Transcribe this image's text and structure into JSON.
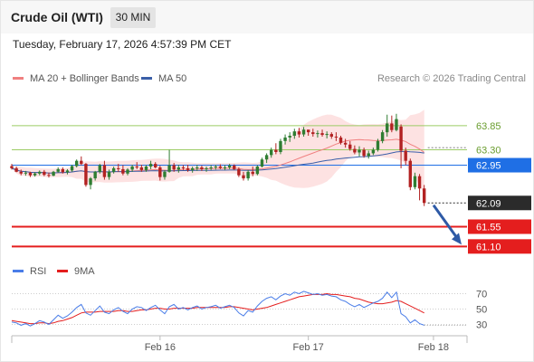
{
  "header": {
    "title": "Crude Oil (WTI)",
    "timeframe": "30 MIN",
    "datetime": "Tuesday, February 17, 2026 4:57:39 PM CET"
  },
  "legend": {
    "ma20_bb_label": "MA 20 + Bollinger Bands",
    "ma50_label": "MA 50",
    "copyright": "Research © 2026 Trading Central",
    "rsi_label": "RSI",
    "rsi_ma_label": "9MA"
  },
  "colors": {
    "bull": "#2f7d32",
    "bear": "#b22222",
    "ma20": "#f08080",
    "bollinger_fill": "#fde2e2",
    "ma50": "#3b5fa8",
    "green_levels": "#9ccc65",
    "support": "#e41e1e",
    "pivot": "#1f6fe5",
    "last_price": "#2b2b2b",
    "rsi": "#4a7de8",
    "rsi_ma": "#e41e1e",
    "arrow": "#2e5aa6"
  },
  "chart_data": [
    {
      "type": "candlestick",
      "title": "Crude Oil (WTI)",
      "interval": "30 MIN",
      "ylim": [
        60.88,
        64.63
      ],
      "x_ticks": [
        "Feb 16",
        "Feb 17",
        "Feb 18"
      ],
      "price_levels": [
        {
          "label": "63.85",
          "value": 63.85,
          "kind": "resistance"
        },
        {
          "label": "63.30",
          "value": 63.3,
          "kind": "resistance"
        },
        {
          "label": "62.95",
          "value": 62.95,
          "kind": "pivot"
        },
        {
          "label": "62.09",
          "value": 62.09,
          "kind": "last"
        },
        {
          "label": "61.55",
          "value": 61.55,
          "kind": "support"
        },
        {
          "label": "61.10",
          "value": 61.1,
          "kind": "support"
        }
      ],
      "forecast_arrow": {
        "from": 62.08,
        "to": 61.1
      },
      "candles": [
        [
          62.93,
          62.98,
          62.85,
          62.88
        ],
        [
          62.88,
          62.92,
          62.79,
          62.8
        ],
        [
          62.8,
          62.85,
          62.72,
          62.76
        ],
        [
          62.76,
          62.82,
          62.71,
          62.78
        ],
        [
          62.78,
          62.8,
          62.68,
          62.72
        ],
        [
          62.72,
          62.79,
          62.69,
          62.76
        ],
        [
          62.76,
          62.83,
          62.72,
          62.8
        ],
        [
          62.8,
          62.84,
          62.7,
          62.73
        ],
        [
          62.73,
          62.78,
          62.67,
          62.71
        ],
        [
          62.71,
          62.82,
          62.7,
          62.8
        ],
        [
          62.8,
          62.9,
          62.78,
          62.86
        ],
        [
          62.86,
          62.9,
          62.76,
          62.79
        ],
        [
          62.79,
          62.86,
          62.74,
          62.83
        ],
        [
          62.83,
          62.96,
          62.8,
          62.93
        ],
        [
          62.93,
          63.08,
          62.9,
          63.05
        ],
        [
          63.05,
          63.15,
          62.95,
          62.98
        ],
        [
          62.98,
          63.0,
          62.46,
          62.5
        ],
        [
          62.5,
          62.68,
          62.4,
          62.65
        ],
        [
          62.65,
          62.82,
          62.6,
          62.8
        ],
        [
          62.8,
          62.98,
          62.76,
          62.95
        ],
        [
          62.95,
          63.05,
          62.62,
          62.68
        ],
        [
          62.68,
          62.85,
          62.62,
          62.8
        ],
        [
          62.8,
          62.92,
          62.76,
          62.88
        ],
        [
          62.88,
          62.98,
          62.8,
          62.86
        ],
        [
          62.86,
          62.95,
          62.72,
          62.76
        ],
        [
          62.76,
          62.88,
          62.72,
          62.85
        ],
        [
          62.85,
          62.96,
          62.8,
          62.92
        ],
        [
          62.92,
          63.02,
          62.86,
          62.9
        ],
        [
          62.9,
          62.96,
          62.8,
          62.84
        ],
        [
          62.84,
          62.95,
          62.8,
          62.92
        ],
        [
          62.92,
          63.05,
          62.86,
          62.98
        ],
        [
          62.98,
          63.02,
          62.88,
          62.9
        ],
        [
          62.9,
          62.94,
          62.6,
          62.68
        ],
        [
          62.68,
          62.84,
          62.62,
          62.8
        ],
        [
          62.8,
          63.3,
          62.78,
          62.95
        ],
        [
          62.95,
          63.0,
          62.8,
          62.85
        ],
        [
          62.85,
          62.96,
          62.78,
          62.9
        ],
        [
          62.9,
          62.95,
          62.84,
          62.88
        ],
        [
          62.88,
          62.96,
          62.8,
          62.84
        ],
        [
          62.84,
          62.92,
          62.78,
          62.88
        ],
        [
          62.88,
          62.96,
          62.82,
          62.9
        ],
        [
          62.9,
          62.94,
          62.82,
          62.86
        ],
        [
          62.86,
          62.92,
          62.8,
          62.88
        ],
        [
          62.88,
          62.95,
          62.84,
          62.9
        ],
        [
          62.9,
          62.96,
          62.85,
          62.92
        ],
        [
          62.92,
          62.97,
          62.86,
          62.89
        ],
        [
          62.89,
          62.95,
          62.84,
          62.9
        ],
        [
          62.9,
          62.98,
          62.86,
          62.94
        ],
        [
          62.94,
          62.97,
          62.84,
          62.86
        ],
        [
          62.86,
          62.9,
          62.68,
          62.72
        ],
        [
          62.72,
          62.8,
          62.6,
          62.65
        ],
        [
          62.65,
          62.84,
          62.6,
          62.8
        ],
        [
          62.8,
          62.92,
          62.7,
          62.75
        ],
        [
          62.75,
          62.95,
          62.72,
          62.92
        ],
        [
          62.92,
          63.12,
          62.9,
          63.08
        ],
        [
          63.08,
          63.22,
          63.0,
          63.18
        ],
        [
          63.18,
          63.35,
          63.12,
          63.3
        ],
        [
          63.3,
          63.45,
          63.2,
          63.25
        ],
        [
          63.25,
          63.55,
          63.2,
          63.5
        ],
        [
          63.5,
          63.65,
          63.42,
          63.58
        ],
        [
          63.58,
          63.7,
          63.48,
          63.62
        ],
        [
          63.62,
          63.78,
          63.55,
          63.72
        ],
        [
          63.72,
          63.8,
          63.58,
          63.65
        ],
        [
          63.65,
          63.82,
          63.6,
          63.76
        ],
        [
          63.76,
          63.75,
          63.62,
          63.7
        ],
        [
          63.7,
          63.78,
          63.6,
          63.66
        ],
        [
          63.66,
          63.74,
          63.58,
          63.68
        ],
        [
          63.68,
          63.76,
          63.6,
          63.64
        ],
        [
          63.64,
          63.72,
          63.56,
          63.66
        ],
        [
          63.66,
          63.7,
          63.55,
          63.6
        ],
        [
          63.6,
          63.7,
          63.5,
          63.58
        ],
        [
          63.58,
          63.62,
          63.42,
          63.46
        ],
        [
          63.46,
          63.55,
          63.35,
          63.42
        ],
        [
          63.42,
          63.5,
          63.28,
          63.32
        ],
        [
          63.32,
          63.4,
          63.2,
          63.24
        ],
        [
          63.24,
          63.38,
          63.15,
          63.3
        ],
        [
          63.3,
          63.35,
          63.12,
          63.16
        ],
        [
          63.16,
          63.28,
          63.1,
          63.22
        ],
        [
          63.22,
          63.35,
          63.18,
          63.3
        ],
        [
          63.3,
          63.55,
          63.26,
          63.5
        ],
        [
          63.5,
          63.75,
          63.45,
          63.7
        ],
        [
          63.7,
          64.1,
          63.6,
          63.9
        ],
        [
          63.9,
          64.08,
          63.7,
          63.75
        ],
        [
          63.75,
          64.12,
          63.72,
          64.0
        ],
        [
          63.83,
          63.88,
          62.88,
          63.28
        ],
        [
          63.28,
          63.35,
          62.95,
          63.05
        ],
        [
          63.05,
          63.1,
          62.38,
          62.45
        ],
        [
          62.45,
          62.78,
          62.4,
          62.7
        ],
        [
          62.7,
          62.75,
          62.15,
          62.42
        ],
        [
          62.42,
          62.5,
          62.02,
          62.09
        ]
      ]
    },
    {
      "type": "line",
      "title": "RSI",
      "ylim": [
        20,
        80
      ],
      "y_ticks": [
        30,
        50,
        70
      ],
      "series": [
        {
          "name": "RSI",
          "values": [
            33,
            32,
            29,
            31,
            28,
            31,
            35,
            33,
            30,
            36,
            42,
            38,
            41,
            46,
            52,
            56,
            45,
            42,
            48,
            54,
            46,
            44,
            49,
            52,
            47,
            44,
            50,
            53,
            52,
            48,
            52,
            55,
            49,
            44,
            53,
            56,
            50,
            52,
            49,
            52,
            54,
            50,
            52,
            53,
            55,
            51,
            53,
            55,
            52,
            45,
            41,
            48,
            46,
            54,
            60,
            64,
            66,
            62,
            67,
            70,
            68,
            72,
            70,
            73,
            71,
            69,
            70,
            68,
            69,
            67,
            66,
            62,
            60,
            56,
            53,
            56,
            52,
            55,
            58,
            60,
            64,
            72,
            65,
            72,
            44,
            40,
            32,
            36,
            31,
            29
          ]
        },
        {
          "name": "9MA",
          "values": [
            35,
            34,
            33,
            32,
            31,
            31,
            32,
            32,
            31,
            32,
            34,
            35,
            37,
            39,
            42,
            45,
            46,
            46,
            46,
            47,
            47,
            47,
            47,
            48,
            48,
            47,
            47,
            48,
            49,
            49,
            50,
            51,
            51,
            50,
            50,
            51,
            51,
            51,
            51,
            51,
            52,
            52,
            52,
            52,
            52,
            52,
            52,
            53,
            53,
            52,
            51,
            50,
            49,
            50,
            51,
            52,
            54,
            56,
            58,
            60,
            62,
            64,
            66,
            67,
            68,
            69,
            69,
            69,
            70,
            69,
            69,
            68,
            67,
            66,
            64,
            63,
            61,
            59,
            58,
            57,
            57,
            58,
            59,
            61,
            60,
            57,
            54,
            51,
            48,
            45
          ]
        }
      ]
    }
  ]
}
